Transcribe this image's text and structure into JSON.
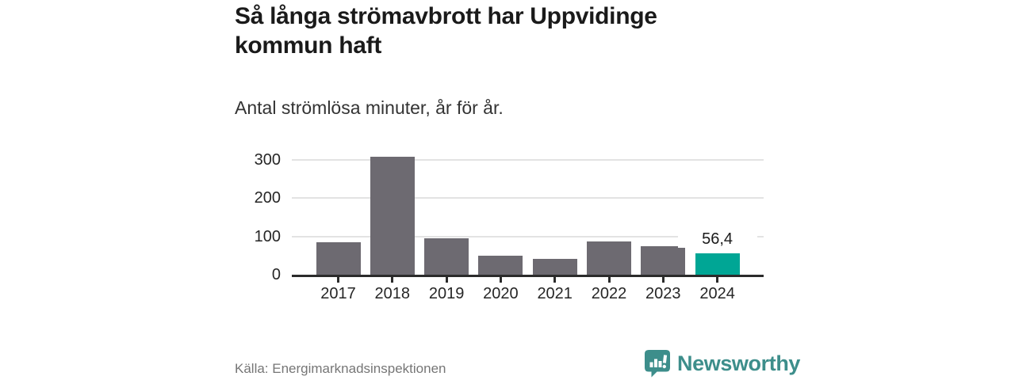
{
  "header": {
    "title": "Så långa strömavbrott har Uppvidinge kommun haft",
    "subtitle": "Antal strömlösa minuter, år för år."
  },
  "chart_data": {
    "type": "bar",
    "title": "Så långa strömavbrott har Uppvidinge kommun haft",
    "subtitle": "Antal strömlösa minuter, år för år.",
    "categories": [
      "2017",
      "2018",
      "2019",
      "2020",
      "2021",
      "2022",
      "2023",
      "2024"
    ],
    "values": [
      84,
      308,
      96,
      49,
      42,
      86,
      75,
      56.4
    ],
    "xlabel": "",
    "ylabel": "Antal strömlösa minuter",
    "ylim": [
      0,
      315
    ],
    "yticks": [
      0,
      100,
      200,
      300
    ],
    "grid": true,
    "legend": false,
    "bar_color": "#6d6a71",
    "highlight_index": 7,
    "highlight_color": "#00a695",
    "highlight_label": "56,4"
  },
  "footer": {
    "source": "Källa: Energimarknadsinspektionen",
    "brand": "Newsworthy"
  },
  "colors": {
    "title_text": "#1a1a1a",
    "axis_text": "#262626",
    "gridline": "#e3e3e3",
    "axis_line": "#2b2b2b",
    "source_text": "#767676",
    "brand_teal": "#3d8e8b"
  }
}
